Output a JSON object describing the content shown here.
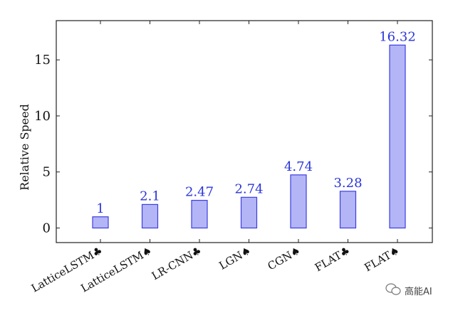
{
  "chart_data": {
    "type": "bar",
    "ylabel": "Relative Speed",
    "xlabel": "",
    "title": "",
    "categories": [
      "LatticeLSTM♣",
      "LatticeLSTM♠",
      "LR-CNN♣",
      "LGN♠",
      "CGN♠",
      "FLAT♣",
      "FLAT♠"
    ],
    "values": [
      1,
      2.1,
      2.47,
      2.74,
      4.74,
      3.28,
      16.32
    ],
    "value_labels": [
      "1",
      "2.1",
      "2.47",
      "2.74",
      "4.74",
      "3.28",
      "16.32"
    ],
    "ylim": [
      -1.3,
      18.5
    ],
    "yticks": [
      0,
      5,
      10,
      15
    ],
    "grid": false,
    "bar_fill": "#b3b5f7",
    "bar_stroke": "#3c3fe0",
    "label_color": "#2a35d8"
  },
  "watermark": {
    "text": "高能AI",
    "icon": "wechat-icon"
  }
}
